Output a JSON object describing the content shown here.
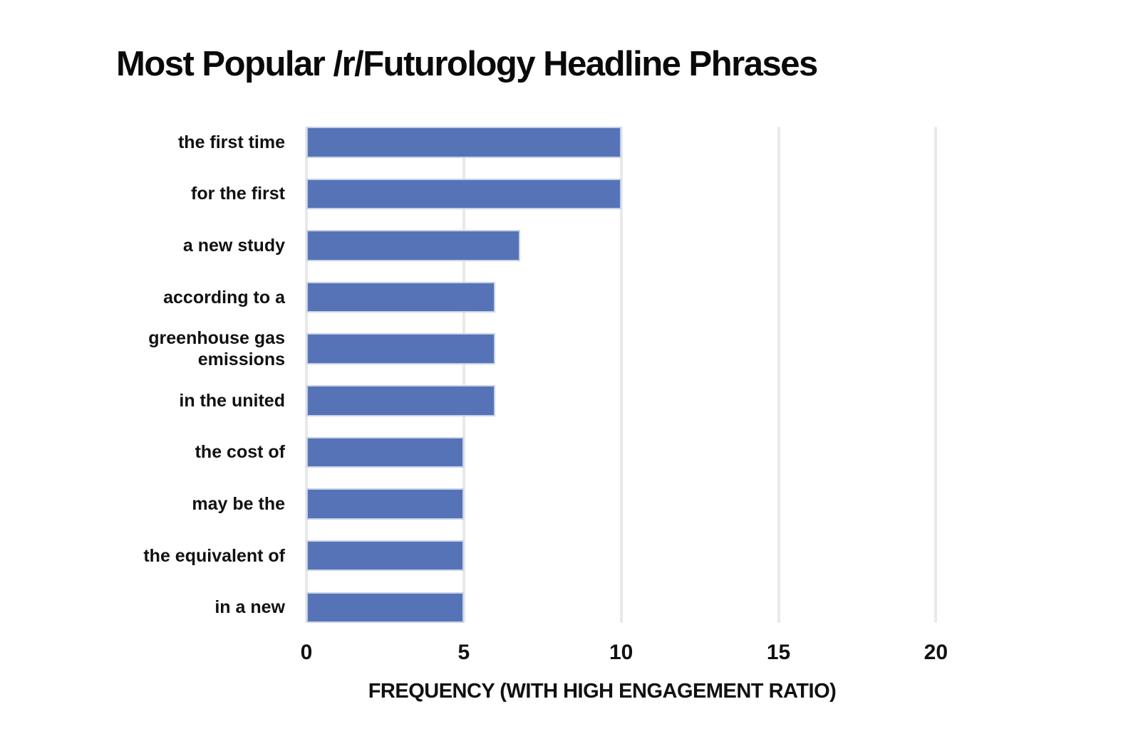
{
  "chart_data": {
    "type": "bar",
    "orientation": "horizontal",
    "title": "Most Popular /r/Futurology Headline Phrases",
    "xlabel": "FREQUENCY (WITH HIGH ENGAGEMENT RATIO)",
    "categories": [
      "the first time",
      "for the first",
      "a new study",
      "according to a",
      "greenhouse gas emissions",
      "in the united",
      "the cost of",
      "may be the",
      "the equivalent of",
      "in a new"
    ],
    "values": [
      10,
      10,
      6.8,
      6,
      6,
      6,
      5,
      5,
      5,
      5
    ],
    "xticks": [
      0,
      5,
      10,
      15,
      20
    ],
    "xlim": [
      0,
      24
    ],
    "grid": true,
    "legend": false,
    "colors": {
      "bar": "#5673b8",
      "bar_border": "#c7d1e7",
      "gridline": "#e9e9eb",
      "text": "#111111",
      "background": "#ffffff"
    }
  }
}
